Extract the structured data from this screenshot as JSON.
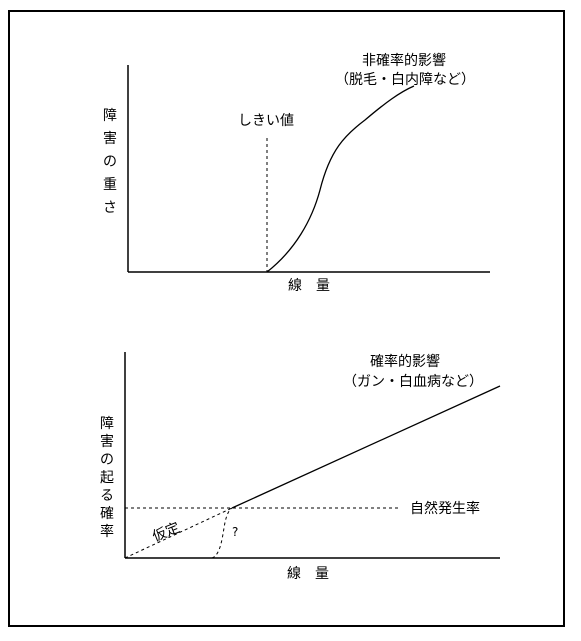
{
  "top_chart": {
    "curve_label_line1": "非確率的影響",
    "curve_label_line2": "（脱毛・白内障など）",
    "threshold_label": "しきい値",
    "y_label": [
      "障",
      "害",
      "の",
      "重",
      "さ"
    ],
    "x_label": "線　量"
  },
  "bottom_chart": {
    "curve_label_line1": "確率的影響",
    "curve_label_line2": "（ガン・白血病など）",
    "y_label": [
      "障",
      "害",
      "の",
      "起",
      "る",
      "確",
      "率"
    ],
    "x_label": "線　量",
    "natural_rate_label": "自然発生率",
    "hypothesis_label": "仮定",
    "question_mark": "?"
  },
  "colors": {
    "line": "#000000",
    "background": "#ffffff"
  }
}
